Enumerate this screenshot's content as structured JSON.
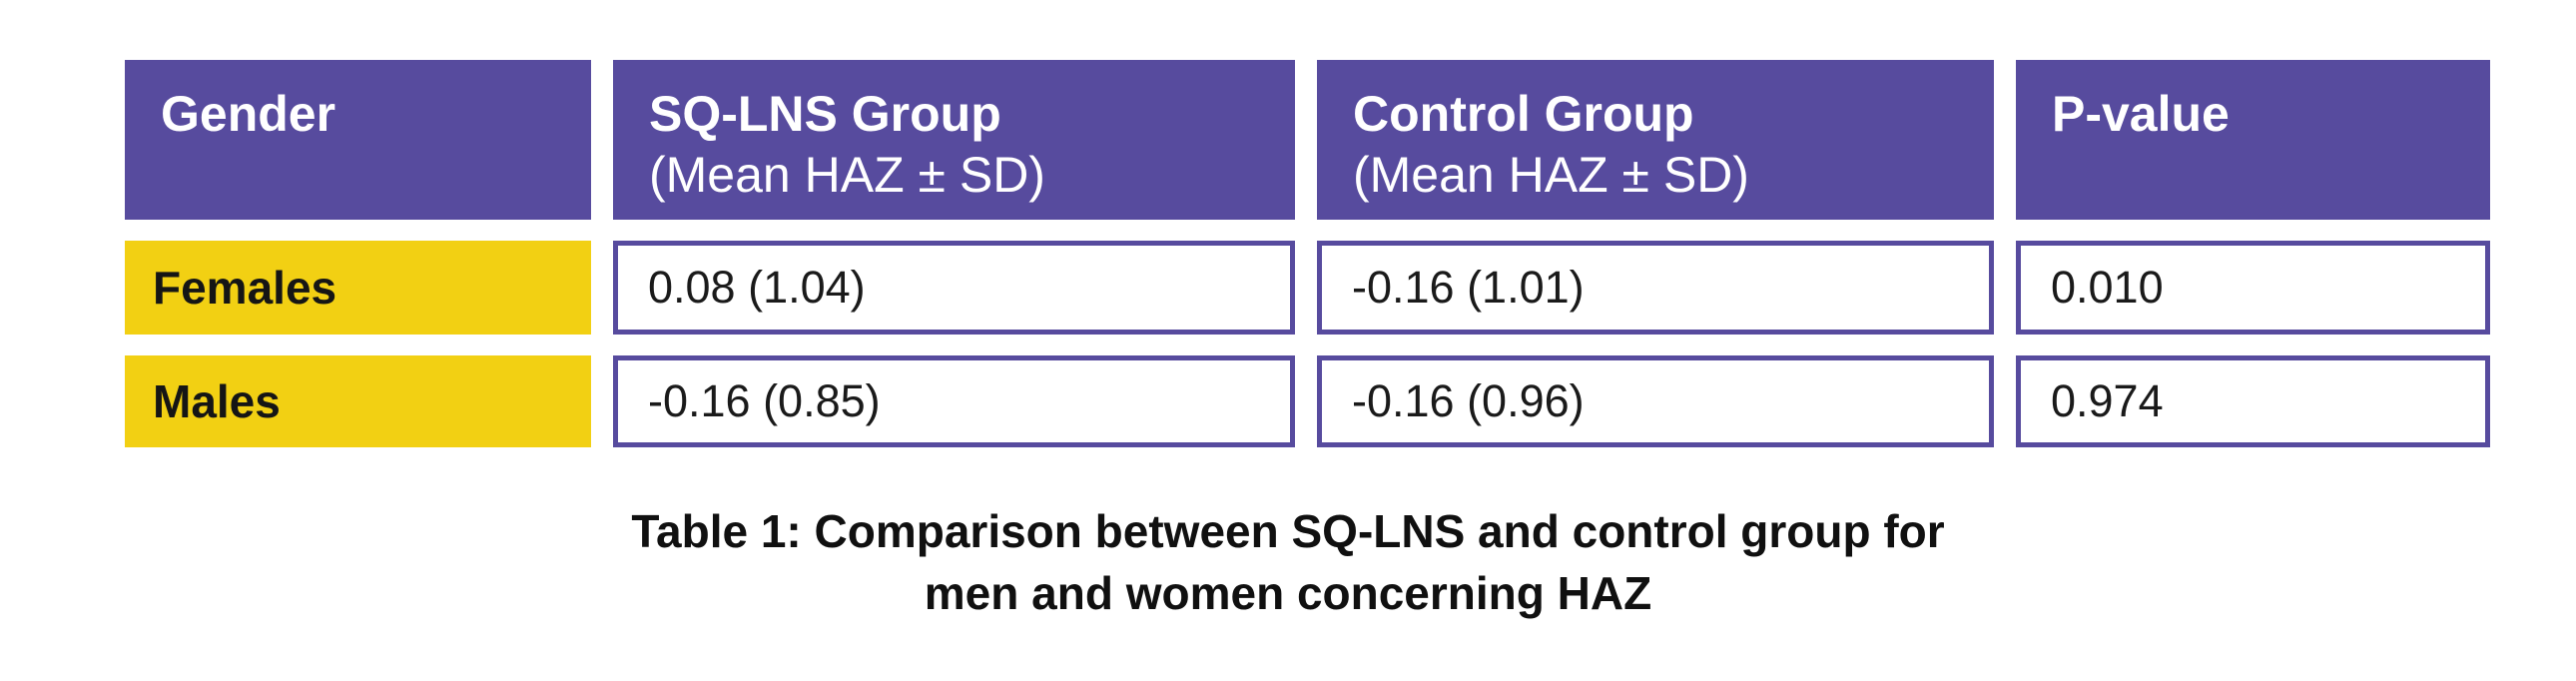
{
  "chart_data": {
    "type": "table",
    "title": "Table 1: Comparison between SQ-LNS and control group for men and women concerning HAZ",
    "columns": [
      "Gender",
      "SQ-LNS Group (Mean HAZ ± SD)",
      "Control Group (Mean HAZ ± SD)",
      "P-value"
    ],
    "rows": [
      [
        "Females",
        "0.08 (1.04)",
        "-0.16 (1.01)",
        "0.010"
      ],
      [
        "Males",
        "-0.16 (0.85)",
        "-0.16 (0.96)",
        "0.974"
      ]
    ]
  },
  "header": {
    "gender": {
      "title": "Gender",
      "subtitle": ""
    },
    "sqlns": {
      "title": "SQ-LNS Group",
      "subtitle": "(Mean HAZ ± SD)"
    },
    "control": {
      "title": "Control Group",
      "subtitle": "(Mean HAZ ± SD)"
    },
    "pvalue": {
      "title": "P-value",
      "subtitle": ""
    }
  },
  "rows": {
    "females": {
      "label": "Females",
      "sqlns": "0.08 (1.04)",
      "control": "-0.16 (1.01)",
      "pvalue": "0.010"
    },
    "males": {
      "label": "Males",
      "sqlns": "-0.16 (0.85)",
      "control": "-0.16 (0.96)",
      "pvalue": "0.974"
    }
  },
  "caption": {
    "line1": "Table 1: Comparison between SQ-LNS and control group for",
    "line2": "men and women concerning HAZ"
  },
  "colors": {
    "purple": "#574b9e",
    "yellow": "#f2d013",
    "cell_border": "#574b9e",
    "header_text": "#ffffff",
    "body_text": "#1a1a1a"
  }
}
